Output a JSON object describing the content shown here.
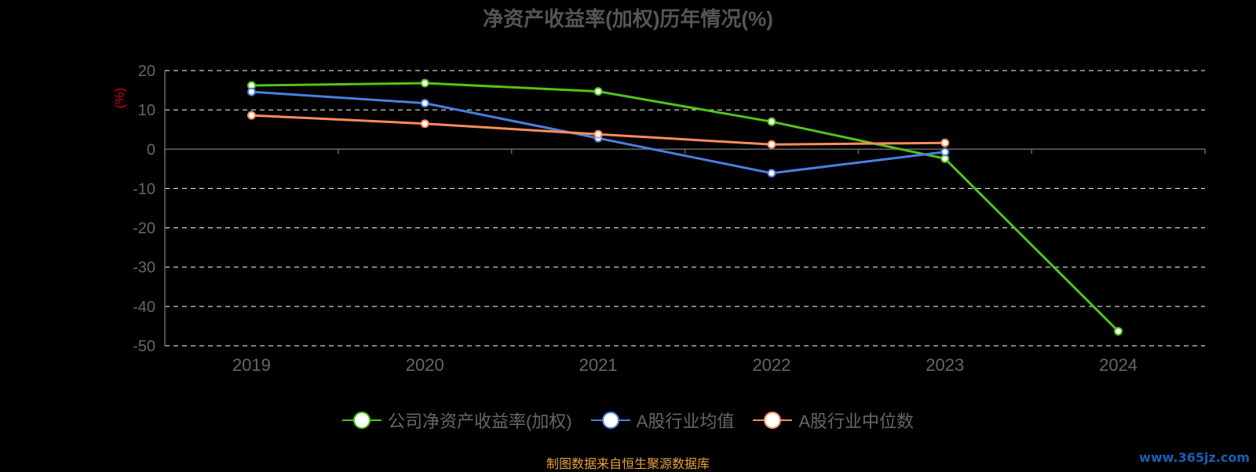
{
  "chart_data": {
    "type": "line",
    "title": "净资产收益率(加权)历年情况(%)",
    "ylabel": "(%)",
    "categories": [
      "2019",
      "2020",
      "2021",
      "2022",
      "2023",
      "2024"
    ],
    "ylim": [
      -50,
      20
    ],
    "yticks": [
      20,
      10,
      0,
      -10,
      -20,
      -30,
      -40,
      -50
    ],
    "grid": true,
    "legend_position": "bottom",
    "series": [
      {
        "name": "公司净资产收益率(加权)",
        "color": "#52c41a",
        "values": [
          16.2,
          16.8,
          14.7,
          7.0,
          -2.4,
          -46.3
        ]
      },
      {
        "name": "A股行业均值",
        "color": "#4a7fe0",
        "values": [
          14.6,
          11.7,
          2.8,
          -6.1,
          -0.7,
          null
        ]
      },
      {
        "name": "A股行业中位数",
        "color": "#ff8c5a",
        "values": [
          8.6,
          6.5,
          3.8,
          1.2,
          1.6,
          null
        ]
      }
    ]
  },
  "footer": {
    "source": "制图数据来自恒生聚源数据库",
    "watermark": "www.365jz.com"
  }
}
